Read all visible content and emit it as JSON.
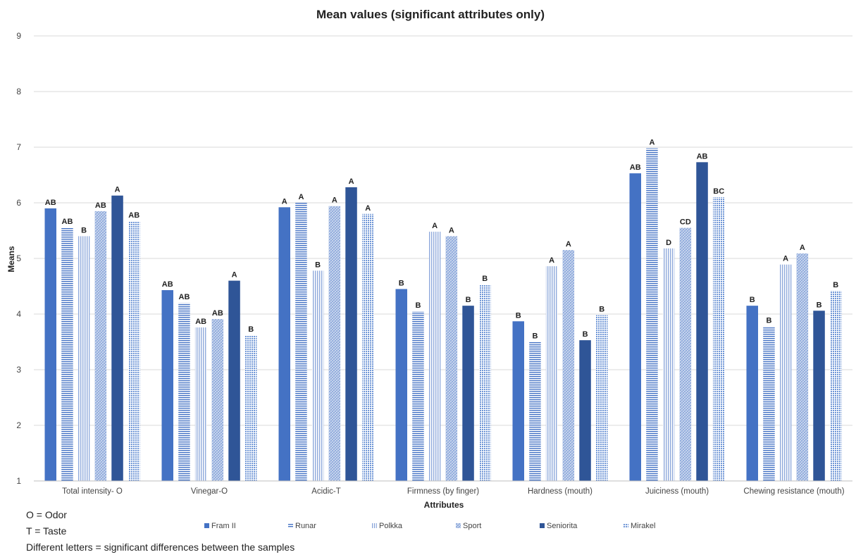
{
  "chart_data": {
    "type": "bar",
    "title": "Mean values (significant attributes only)",
    "xlabel": "Attributes",
    "ylabel": "Means",
    "ylim": [
      1,
      9
    ],
    "yticks": [
      1,
      2,
      3,
      4,
      5,
      6,
      7,
      8,
      9
    ],
    "grid": true,
    "legend_position": "bottom",
    "categories": [
      "Total intensity- O",
      "Vinegar-O",
      "Acidic-T",
      "Firmness (by finger)",
      "Hardness (mouth)",
      "Juiciness (mouth)",
      "Chewing resistance (mouth)"
    ],
    "series": [
      {
        "name": "Fram II",
        "color": "#4472c4",
        "pattern": "solid",
        "values": [
          5.9,
          4.43,
          5.92,
          4.45,
          3.87,
          6.53,
          4.15
        ],
        "labels": [
          "AB",
          "AB",
          "A",
          "B",
          "B",
          "AB",
          "B"
        ]
      },
      {
        "name": "Runar",
        "color": "#4472c4",
        "pattern": "hlines",
        "values": [
          5.56,
          4.2,
          6.0,
          4.05,
          3.5,
          6.98,
          3.78
        ],
        "labels": [
          "AB",
          "AB",
          "A",
          "B",
          "B",
          "A",
          "B"
        ]
      },
      {
        "name": "Polkka",
        "color": "#8faadc",
        "pattern": "vlines",
        "values": [
          5.4,
          3.76,
          4.78,
          5.48,
          4.86,
          5.18,
          4.89
        ],
        "labels": [
          "B",
          "AB",
          "B",
          "A",
          "A",
          "D",
          "A"
        ]
      },
      {
        "name": "Sport",
        "color": "#8faadc",
        "pattern": "diag",
        "values": [
          5.85,
          3.91,
          5.94,
          5.4,
          5.15,
          5.55,
          5.09
        ],
        "labels": [
          "AB",
          "AB",
          "A",
          "A",
          "A",
          "CD",
          "A"
        ]
      },
      {
        "name": "Seniorita",
        "color": "#2f5597",
        "pattern": "solid",
        "values": [
          6.13,
          4.6,
          6.28,
          4.15,
          3.53,
          6.73,
          4.06
        ],
        "labels": [
          "A",
          "A",
          "A",
          "B",
          "B",
          "AB",
          "B"
        ]
      },
      {
        "name": "Mirakel",
        "color": "#6f96d6",
        "pattern": "dots",
        "values": [
          5.67,
          3.62,
          5.8,
          4.53,
          3.98,
          6.1,
          4.42
        ],
        "labels": [
          "AB",
          "B",
          "A",
          "B",
          "B",
          "BC",
          "B"
        ]
      }
    ]
  },
  "notes": {
    "odor": "O = Odor",
    "taste": "T = Taste",
    "letters": "Different letters = significant differences  between the samples"
  }
}
